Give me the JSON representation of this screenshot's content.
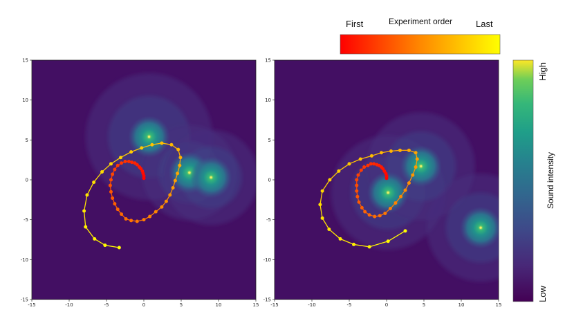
{
  "chart_data": {
    "type": "scatter",
    "panels": [
      {
        "xlim": [
          -15,
          15
        ],
        "ylim": [
          -15,
          15
        ],
        "xticks": [
          "-15",
          "-10",
          "-5",
          "0",
          "5",
          "10",
          "15"
        ],
        "yticks": [
          "15",
          "10",
          "5",
          "0",
          "-5",
          "-10",
          "-15"
        ],
        "sources": [
          {
            "x": 0.7,
            "y": 5.4,
            "intensity": 1.0
          },
          {
            "x": 6.1,
            "y": 0.9,
            "intensity": 0.75
          },
          {
            "x": 9.0,
            "y": 0.3,
            "intensity": 0.75
          }
        ],
        "path": [
          [
            0.0,
            0.2
          ],
          [
            0.0,
            0.5
          ],
          [
            -0.1,
            0.8
          ],
          [
            -0.2,
            1.1
          ],
          [
            -0.4,
            1.4
          ],
          [
            -0.6,
            1.6
          ],
          [
            -0.9,
            1.9
          ],
          [
            -1.2,
            2.1
          ],
          [
            -1.6,
            2.2
          ],
          [
            -2.0,
            2.3
          ],
          [
            -2.5,
            2.3
          ],
          [
            -3.0,
            2.1
          ],
          [
            -3.5,
            1.8
          ],
          [
            -3.9,
            1.3
          ],
          [
            -4.2,
            0.7
          ],
          [
            -4.4,
            0.0
          ],
          [
            -4.5,
            -0.7
          ],
          [
            -4.4,
            -1.5
          ],
          [
            -4.2,
            -2.3
          ],
          [
            -3.9,
            -3.0
          ],
          [
            -3.5,
            -3.7
          ],
          [
            -3.0,
            -4.3
          ],
          [
            -2.4,
            -4.9
          ],
          [
            -1.7,
            -5.1
          ],
          [
            -0.9,
            -5.2
          ],
          [
            0.0,
            -5.0
          ],
          [
            0.8,
            -4.6
          ],
          [
            1.6,
            -4.0
          ],
          [
            2.4,
            -3.4
          ],
          [
            3.0,
            -2.7
          ],
          [
            3.5,
            -1.9
          ],
          [
            3.9,
            -1.0
          ],
          [
            4.2,
            -0.1
          ],
          [
            4.5,
            0.8
          ],
          [
            4.8,
            1.8
          ],
          [
            4.9,
            2.8
          ],
          [
            4.6,
            3.8
          ],
          [
            3.7,
            4.4
          ],
          [
            2.4,
            4.6
          ],
          [
            1.1,
            4.4
          ],
          [
            -0.3,
            4.0
          ],
          [
            -1.7,
            3.5
          ],
          [
            -3.1,
            2.8
          ],
          [
            -4.4,
            2.0
          ],
          [
            -5.6,
            1.0
          ],
          [
            -6.7,
            -0.3
          ],
          [
            -7.6,
            -1.9
          ],
          [
            -8.0,
            -3.9
          ],
          [
            -7.8,
            -5.9
          ],
          [
            -6.6,
            -7.4
          ],
          [
            -5.2,
            -8.2
          ],
          [
            -3.3,
            -8.5
          ]
        ]
      },
      {
        "xlim": [
          -15,
          15
        ],
        "ylim": [
          -15,
          15
        ],
        "xticks": [
          "-15",
          "-10",
          "-5",
          "0",
          "5",
          "10",
          "15"
        ],
        "yticks": [
          "15",
          "10",
          "5",
          "0",
          "-5",
          "-10",
          "-15"
        ],
        "sources": [
          {
            "x": 0.2,
            "y": -1.6,
            "intensity": 0.9
          },
          {
            "x": 4.6,
            "y": 1.7,
            "intensity": 0.85
          },
          {
            "x": 12.6,
            "y": -6.0,
            "intensity": 0.85
          }
        ],
        "path": [
          [
            0.0,
            0.2
          ],
          [
            0.0,
            0.5
          ],
          [
            -0.1,
            0.8
          ],
          [
            -0.3,
            1.1
          ],
          [
            -0.5,
            1.4
          ],
          [
            -0.7,
            1.6
          ],
          [
            -1.0,
            1.8
          ],
          [
            -1.3,
            1.9
          ],
          [
            -1.7,
            2.0
          ],
          [
            -2.1,
            2.0
          ],
          [
            -2.5,
            1.8
          ],
          [
            -3.0,
            1.6
          ],
          [
            -3.4,
            1.2
          ],
          [
            -3.8,
            0.6
          ],
          [
            -4.0,
            0.0
          ],
          [
            -4.0,
            -0.7
          ],
          [
            -4.0,
            -1.4
          ],
          [
            -3.9,
            -2.1
          ],
          [
            -3.7,
            -2.8
          ],
          [
            -3.3,
            -3.5
          ],
          [
            -2.9,
            -4.0
          ],
          [
            -2.3,
            -4.4
          ],
          [
            -1.6,
            -4.6
          ],
          [
            -0.9,
            -4.5
          ],
          [
            -0.2,
            -4.2
          ],
          [
            0.5,
            -3.6
          ],
          [
            1.2,
            -2.9
          ],
          [
            1.9,
            -2.1
          ],
          [
            2.5,
            -1.3
          ],
          [
            3.0,
            -0.4
          ],
          [
            3.5,
            0.6
          ],
          [
            3.9,
            1.6
          ],
          [
            4.1,
            2.6
          ],
          [
            3.9,
            3.4
          ],
          [
            3.0,
            3.7
          ],
          [
            1.8,
            3.7
          ],
          [
            0.6,
            3.6
          ],
          [
            -0.7,
            3.4
          ],
          [
            -2.0,
            3.0
          ],
          [
            -3.5,
            2.6
          ],
          [
            -5.0,
            2.0
          ],
          [
            -6.4,
            1.1
          ],
          [
            -7.6,
            0.0
          ],
          [
            -8.6,
            -1.4
          ],
          [
            -8.9,
            -3.1
          ],
          [
            -8.6,
            -4.8
          ],
          [
            -7.7,
            -6.2
          ],
          [
            -6.2,
            -7.4
          ],
          [
            -4.4,
            -8.1
          ],
          [
            -2.3,
            -8.4
          ],
          [
            0.2,
            -7.7
          ],
          [
            2.5,
            -6.4
          ]
        ]
      }
    ],
    "order_colorbar": {
      "title": "Experiment order",
      "left_label": "First",
      "right_label": "Last"
    },
    "intensity_colorbar": {
      "label": "Sound intensity",
      "low_label": "Low",
      "high_label": "High"
    }
  }
}
